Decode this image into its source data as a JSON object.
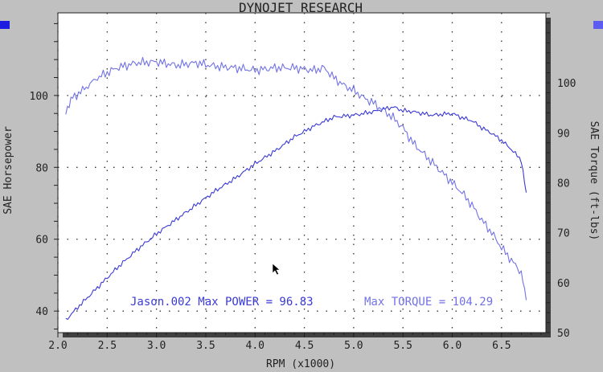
{
  "chart_data": {
    "type": "line",
    "title": "DYNOJET RESEARCH",
    "xlabel": "RPM (x1000)",
    "ylabel_left": "SAE Horsepower",
    "ylabel_right": "SAE Torque (ft-lbs)",
    "xlim": [
      2.0,
      6.95
    ],
    "ylim_left": [
      34,
      123
    ],
    "ylim_right": [
      50,
      114
    ],
    "x_ticks": [
      "2.0",
      "2.5",
      "3.0",
      "3.5",
      "4.0",
      "4.5",
      "5.0",
      "5.5",
      "6.0",
      "6.5"
    ],
    "y_ticks_left": [
      "40",
      "60",
      "80",
      "100"
    ],
    "y_ticks_right": [
      "50",
      "60",
      "70",
      "80",
      "90",
      "100"
    ],
    "grid": true,
    "series": [
      {
        "axis": "left",
        "color": "#3a3ad6",
        "x": [
          2.08,
          2.2,
          2.4,
          2.6,
          2.8,
          3.0,
          3.2,
          3.4,
          3.6,
          3.8,
          4.0,
          4.2,
          4.4,
          4.6,
          4.8,
          5.0,
          5.1,
          5.2,
          5.3,
          5.4,
          5.5,
          5.6,
          5.7,
          5.8,
          5.9,
          6.0,
          6.1,
          6.2,
          6.3,
          6.4,
          6.5,
          6.6,
          6.7,
          6.75
        ],
        "values": [
          37.5,
          41,
          46.5,
          52,
          57,
          61.5,
          65.5,
          69.5,
          73.5,
          77,
          81,
          84.5,
          88.5,
          91.5,
          94,
          94.5,
          95,
          95.5,
          96.2,
          96.8,
          95.8,
          95.5,
          95,
          94.5,
          94.8,
          95,
          93.8,
          93,
          91,
          89.5,
          87.5,
          85,
          82,
          73
        ]
      },
      {
        "axis": "right",
        "color": "#7272e6",
        "x": [
          2.08,
          2.15,
          2.25,
          2.4,
          2.6,
          2.8,
          3.0,
          3.2,
          3.4,
          3.6,
          3.8,
          4.0,
          4.2,
          4.4,
          4.6,
          4.7,
          4.8,
          4.9,
          5.0,
          5.1,
          5.2,
          5.3,
          5.4,
          5.5,
          5.6,
          5.7,
          5.8,
          5.9,
          6.0,
          6.1,
          6.2,
          6.3,
          6.4,
          6.5,
          6.6,
          6.7,
          6.75
        ],
        "values": [
          94.5,
          97,
          98.5,
          101,
          103,
          104,
          104.2,
          103.5,
          104,
          103.3,
          103,
          102.5,
          103,
          103,
          102.5,
          103,
          101,
          99.5,
          98.5,
          97,
          96,
          94.5,
          93,
          91,
          88,
          86,
          84,
          82,
          80,
          78,
          75.5,
          72.5,
          70,
          67,
          64.5,
          62,
          56.5
        ]
      }
    ],
    "annotation_left": "Jason.002 Max POWER = 96.83",
    "annotation_right": "Max TORQUE = 104.29"
  },
  "colors": {
    "background": "#c0c0c0",
    "plot": "#ffffff",
    "power": "#3a3ad6",
    "torque": "#7272e6",
    "swatch_left": "#1e1ee0",
    "swatch_right": "#5c5cf0"
  }
}
